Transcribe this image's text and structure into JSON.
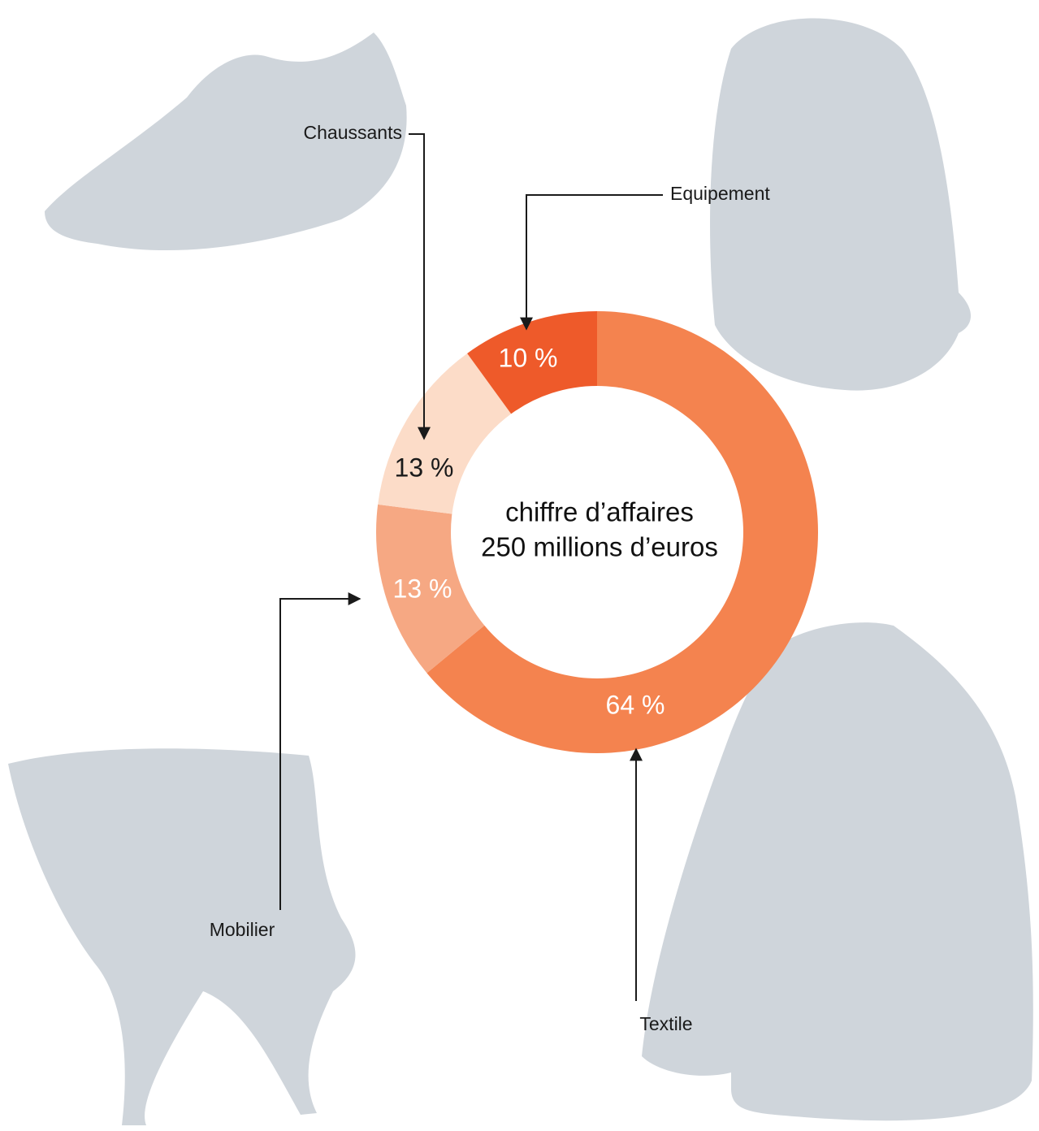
{
  "chart_data": {
    "type": "donut",
    "center_text": [
      "chiffre d’affaires",
      "250 millions d’euros"
    ],
    "categories": [
      "Textile",
      "Mobilier",
      "Chaussants",
      "Equipement"
    ],
    "values": [
      64,
      13,
      13,
      10
    ],
    "value_labels": [
      "64 %",
      "13 %",
      "13 %",
      "10 %"
    ],
    "colors": [
      "#f4834f",
      "#f6a883",
      "#fcdcc8",
      "#ee5a2a"
    ],
    "label_colors": [
      "#ffffff",
      "#ffffff",
      "#1a1a1a",
      "#ffffff"
    ]
  }
}
